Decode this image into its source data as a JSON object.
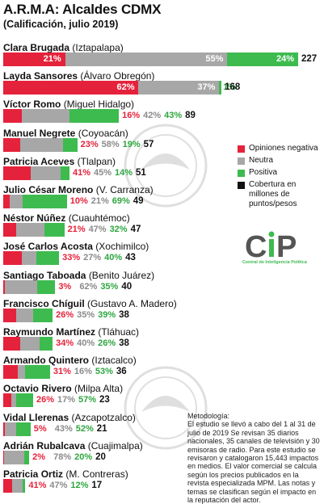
{
  "title": "A.R.M.A: Alcaldes CDMX",
  "subtitle": "(Calificación, julio 2019)",
  "legend": [
    {
      "label": "Opiniones negativa",
      "color": "#e5223b"
    },
    {
      "label": "Neutra",
      "color": "#a7a7a7"
    },
    {
      "label": "Positiva",
      "color": "#3dbb4f"
    },
    {
      "label": "Cobertura en millones de puntos/pesos",
      "color": "#111111"
    }
  ],
  "logo": {
    "mark": "CiP",
    "caption": "Central de Inteligencia Política"
  },
  "methodology": {
    "heading": "Metodología:",
    "text": "El estudio se llevó a cabo del 1 al 31 de julio de 2019 Se revisan 35 diarios nacionales, 35 canales de televisión y 30 emisoras de radio. Para este estudio se revisaron y catalogaron 15,443 impactos en medios. El valor comercial se calcula según los precios publicados en la revista especializada MPM. Las notas y temas se clasifican según el impacto en la reputación del actor."
  },
  "chart_data": {
    "type": "bar",
    "stacked": true,
    "title": "A.R.M.A: Alcaldes CDMX",
    "subtitle": "(Calificación, julio 2019)",
    "series_names": [
      "Opiniones negativa",
      "Neutra",
      "Positiva"
    ],
    "colors": {
      "negative": "#e5223b",
      "neutral": "#a7a7a7",
      "positive": "#3dbb4f"
    },
    "coverage_label": "Cobertura en millones de puntos/pesos",
    "max_coverage": 227,
    "rows": [
      {
        "name": "Clara Brugada",
        "borough": "(Iztapalapa)",
        "negative": 21,
        "neutral": 55,
        "positive": 24,
        "coverage": 227
      },
      {
        "name": "Layda Sansores",
        "borough": "(Álvaro Obregón)",
        "negative": 62,
        "neutral": 37,
        "positive": 1,
        "coverage": 168
      },
      {
        "name": "Víctor Romo",
        "borough": "(Miguel Hidalgo)",
        "negative": 16,
        "neutral": 42,
        "positive": 43,
        "coverage": 89
      },
      {
        "name": "Manuel Negrete",
        "borough": "(Coyoacán)",
        "negative": 23,
        "neutral": 58,
        "positive": 19,
        "coverage": 57
      },
      {
        "name": "Patricia Aceves",
        "borough": "(Tlalpan)",
        "negative": 41,
        "neutral": 45,
        "positive": 14,
        "coverage": 51
      },
      {
        "name": "Julio César Moreno",
        "borough": "(V. Carranza)",
        "negative": 10,
        "neutral": 21,
        "positive": 69,
        "coverage": 49
      },
      {
        "name": "Néstor Núñez",
        "borough": "(Cuauhtémoc)",
        "negative": 21,
        "neutral": 47,
        "positive": 32,
        "coverage": 47
      },
      {
        "name": "José Carlos Acosta",
        "borough": "(Xochimilco)",
        "negative": 33,
        "neutral": 27,
        "positive": 40,
        "coverage": 43
      },
      {
        "name": "Santiago Taboada",
        "borough": "(Benito Juárez)",
        "negative": 3,
        "neutral": 62,
        "positive": 35,
        "coverage": 40
      },
      {
        "name": "Francisco Chíguil",
        "borough": "(Gustavo A. Madero)",
        "negative": 26,
        "neutral": 35,
        "positive": 39,
        "coverage": 38
      },
      {
        "name": "Raymundo Martínez",
        "borough": "(Tláhuac)",
        "negative": 34,
        "neutral": 40,
        "positive": 26,
        "coverage": 38
      },
      {
        "name": "Armando Quintero",
        "borough": "(Iztacalco)",
        "negative": 31,
        "neutral": 16,
        "positive": 53,
        "coverage": 36
      },
      {
        "name": "Octavio Rivero",
        "borough": "(Milpa Alta)",
        "negative": 26,
        "neutral": 17,
        "positive": 57,
        "coverage": 23
      },
      {
        "name": "Vidal Llerenas",
        "borough": "(Azcapotzalco)",
        "negative": 5,
        "neutral": 43,
        "positive": 52,
        "coverage": 21
      },
      {
        "name": "Adrián Rubalcava",
        "borough": "(Cuajimalpa)",
        "negative": 2,
        "neutral": 78,
        "positive": 20,
        "coverage": 20
      },
      {
        "name": "Patricia Ortiz",
        "borough": "(M. Contreras)",
        "negative": 41,
        "neutral": 47,
        "positive": 12,
        "coverage": 17
      }
    ]
  }
}
